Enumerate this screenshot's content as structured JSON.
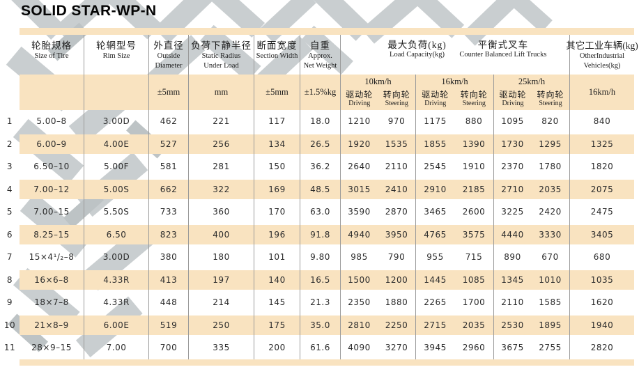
{
  "title": "SOLID STAR-WP-N",
  "colors": {
    "cream": "#f9e3c0",
    "line": "#9a9a9a",
    "tread_gray": "#c9ced0",
    "text": "#1c1c1c"
  },
  "header": {
    "size_of_tire": {
      "cn": "轮胎规格",
      "en": "Size of Tire"
    },
    "rim_size": {
      "cn": "轮辋型号",
      "en": "Rim Size"
    },
    "outside_diameter": {
      "cn": "外直径",
      "en1": "Outside",
      "en2": "Diameter",
      "unit": "±5mm"
    },
    "static_radius": {
      "cn": "负荷下静半径",
      "en1": "Static Radius",
      "en2": "Under Load",
      "unit": "mm"
    },
    "section_width": {
      "cn": "断面宽度",
      "en": "Section Width",
      "unit": "±5mm"
    },
    "net_weight": {
      "cn": "自重",
      "en1": "Approx.",
      "en2": "Net Weight",
      "unit": "±1.5%kg"
    },
    "load_capacity": {
      "cn": "最大负荷(kg)",
      "en": "Load Capacity(kg)"
    },
    "counter_balanced": {
      "cn": "平衡式叉车",
      "en": "Counter Balanced Lift Trucks"
    },
    "other_industrial": {
      "cn": "其它工业车辆(kg)",
      "en1": "OtherIndustrial",
      "en2": "Vehicles(kg)",
      "unit": "16km/h"
    },
    "speed_groups": [
      {
        "speed": "10km/h",
        "driving_cn": "驱动轮",
        "driving_en": "Driving",
        "steering_cn": "转向轮",
        "steering_en": "Steering"
      },
      {
        "speed": "16km/h",
        "driving_cn": "驱动轮",
        "driving_en": "Driving",
        "steering_cn": "转向轮",
        "steering_en": "Steering"
      },
      {
        "speed": "25km/h",
        "driving_cn": "驱动轮",
        "driving_en": "Driving",
        "steering_cn": "转向轮",
        "steering_en": "Steering"
      }
    ]
  },
  "rows": [
    {
      "no": "1",
      "size": "5.00–8",
      "rim": "3.00D",
      "od": "462",
      "sr": "221",
      "sw": "117",
      "nw": "18.0",
      "d10": "1210",
      "s10": "970",
      "d16": "1175",
      "s16": "880",
      "d25": "1095",
      "s25": "820",
      "other": "840"
    },
    {
      "no": "2",
      "size": "6.00–9",
      "rim": "4.00E",
      "od": "527",
      "sr": "256",
      "sw": "134",
      "nw": "26.5",
      "d10": "1920",
      "s10": "1535",
      "d16": "1855",
      "s16": "1390",
      "d25": "1730",
      "s25": "1295",
      "other": "1325"
    },
    {
      "no": "3",
      "size": "6.50–10",
      "rim": "5.00F",
      "od": "581",
      "sr": "281",
      "sw": "150",
      "nw": "36.2",
      "d10": "2640",
      "s10": "2110",
      "d16": "2545",
      "s16": "1910",
      "d25": "2370",
      "s25": "1780",
      "other": "1820"
    },
    {
      "no": "4",
      "size": "7.00–12",
      "rim": "5.00S",
      "od": "662",
      "sr": "322",
      "sw": "169",
      "nw": "48.5",
      "d10": "3015",
      "s10": "2410",
      "d16": "2910",
      "s16": "2185",
      "d25": "2710",
      "s25": "2035",
      "other": "2075"
    },
    {
      "no": "5",
      "size": "7.00–15",
      "rim": "5.50S",
      "od": "733",
      "sr": "360",
      "sw": "170",
      "nw": "63.0",
      "d10": "3590",
      "s10": "2870",
      "d16": "3465",
      "s16": "2600",
      "d25": "3225",
      "s25": "2420",
      "other": "2475"
    },
    {
      "no": "6",
      "size": "8.25–15",
      "rim": "6.50",
      "od": "823",
      "sr": "400",
      "sw": "196",
      "nw": "91.8",
      "d10": "4940",
      "s10": "3950",
      "d16": "4765",
      "s16": "3575",
      "d25": "4440",
      "s25": "3330",
      "other": "3405"
    },
    {
      "no": "7",
      "size": "15×4¹/₂–8",
      "rim": "3.00D",
      "od": "380",
      "sr": "180",
      "sw": "101",
      "nw": "9.80",
      "d10": "985",
      "s10": "790",
      "d16": "955",
      "s16": "715",
      "d25": "890",
      "s25": "670",
      "other": "680"
    },
    {
      "no": "8",
      "size": "16×6–8",
      "rim": "4.33R",
      "od": "413",
      "sr": "197",
      "sw": "140",
      "nw": "16.5",
      "d10": "1500",
      "s10": "1200",
      "d16": "1445",
      "s16": "1085",
      "d25": "1345",
      "s25": "1010",
      "other": "1035"
    },
    {
      "no": "9",
      "size": "18×7–8",
      "rim": "4.33R",
      "od": "448",
      "sr": "214",
      "sw": "145",
      "nw": "21.3",
      "d10": "2350",
      "s10": "1880",
      "d16": "2265",
      "s16": "1700",
      "d25": "2110",
      "s25": "1585",
      "other": "1620"
    },
    {
      "no": "10",
      "size": "21×8–9",
      "rim": "6.00E",
      "od": "519",
      "sr": "250",
      "sw": "175",
      "nw": "35.0",
      "d10": "2810",
      "s10": "2250",
      "d16": "2715",
      "s16": "2035",
      "d25": "2530",
      "s25": "1895",
      "other": "1940"
    },
    {
      "no": "11",
      "size": "28×9–15",
      "rim": "7.00",
      "od": "700",
      "sr": "335",
      "sw": "200",
      "nw": "61.6",
      "d10": "4090",
      "s10": "3270",
      "d16": "3945",
      "s16": "2960",
      "d25": "3675",
      "s25": "2755",
      "other": "2820"
    }
  ]
}
